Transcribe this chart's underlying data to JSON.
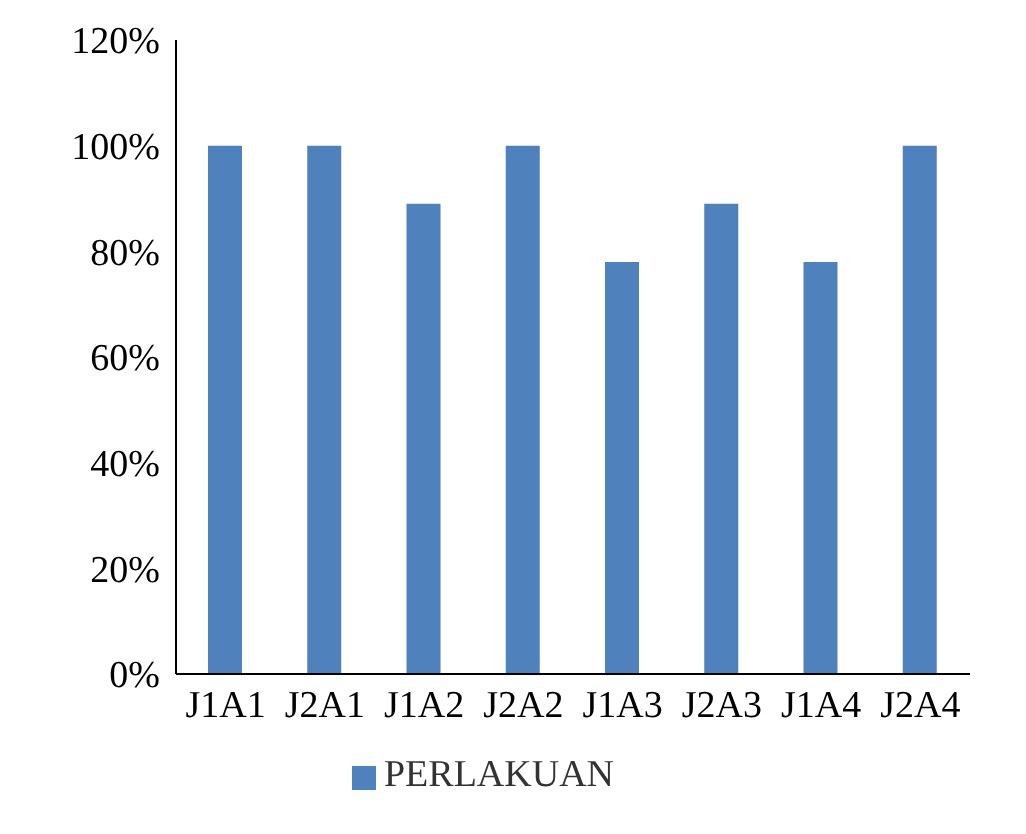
{
  "chart_data": {
    "type": "bar",
    "categories": [
      "J1A1",
      "J2A1",
      "J1A2",
      "J2A2",
      "J1A3",
      "J2A3",
      "J1A4",
      "J2A4"
    ],
    "series": [
      {
        "name": "PERLAKUAN",
        "color": "#4f81bd",
        "values": [
          100,
          100,
          89,
          100,
          78,
          89,
          78,
          100
        ]
      }
    ],
    "ylim": [
      0,
      120
    ],
    "yticks": [
      {
        "value": 0,
        "label": "0%"
      },
      {
        "value": 20,
        "label": "20%"
      },
      {
        "value": 40,
        "label": "40%"
      },
      {
        "value": 60,
        "label": "60%"
      },
      {
        "value": 80,
        "label": "80%"
      },
      {
        "value": 100,
        "label": "100%"
      },
      {
        "value": 120,
        "label": "120%"
      }
    ],
    "grid": false,
    "legend": "bottom"
  }
}
